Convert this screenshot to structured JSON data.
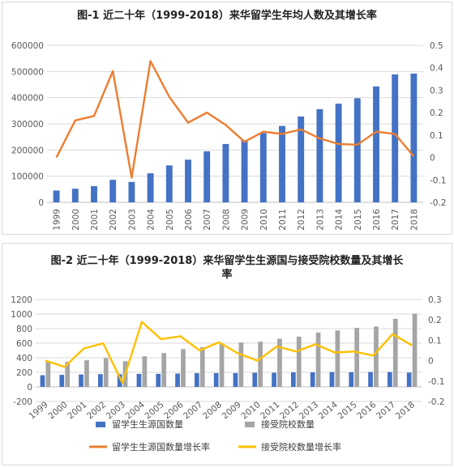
{
  "chart_data": [
    {
      "type": "bar+line",
      "title": "图-1 近二十年（1999-2018）来华留学生年均人数及其增长率",
      "categories": [
        "1999",
        "2000",
        "2001",
        "2002",
        "2003",
        "2004",
        "2005",
        "2006",
        "2007",
        "2008",
        "2009",
        "2010",
        "2011",
        "2012",
        "2013",
        "2014",
        "2015",
        "2016",
        "2017",
        "2018"
      ],
      "series": [
        {
          "kind": "bar",
          "axis": "left",
          "color": "#4472c4",
          "values": [
            45000,
            52000,
            62000,
            86000,
            78000,
            111000,
            141000,
            163000,
            195000,
            223000,
            238000,
            265000,
            292000,
            328000,
            356000,
            377000,
            398000,
            443000,
            489000,
            492000
          ]
        },
        {
          "kind": "line",
          "axis": "right",
          "color": "#ed7d31",
          "values": [
            0.0,
            0.165,
            0.185,
            0.385,
            -0.09,
            0.43,
            0.27,
            0.155,
            0.2,
            0.145,
            0.07,
            0.115,
            0.105,
            0.125,
            0.085,
            0.06,
            0.057,
            0.115,
            0.105,
            0.005
          ]
        }
      ],
      "ylim_left": [
        0,
        600000
      ],
      "yticks_left": [
        "0",
        "100000",
        "200000",
        "300000",
        "400000",
        "500000",
        "600000"
      ],
      "ylim_right": [
        -0.2,
        0.5
      ],
      "yticks_right": [
        "-0.2",
        "-0.1",
        "0",
        "0.1",
        "0.2",
        "0.3",
        "0.4",
        "0.5"
      ],
      "grid": true
    },
    {
      "type": "bar+line",
      "title": "图-2 近二十年（1999-2018）来华留学生生源国与接受院校数量及其增长率",
      "categories": [
        "1999",
        "2000",
        "2001",
        "2002",
        "2003",
        "2004",
        "2005",
        "2006",
        "2007",
        "2008",
        "2009",
        "2010",
        "2011",
        "2012",
        "2013",
        "2014",
        "2015",
        "2016",
        "2017",
        "2018"
      ],
      "series": [
        {
          "name": "留学生生源国数量",
          "kind": "bar",
          "axis": "left",
          "color": "#4472c4",
          "values": [
            160,
            165,
            170,
            175,
            175,
            178,
            179,
            183,
            188,
            189,
            190,
            194,
            194,
            200,
            200,
            203,
            202,
            205,
            204,
            196
          ]
        },
        {
          "name": "接受院校数量",
          "kind": "bar",
          "axis": "left",
          "color": "#a5a5a5",
          "values": [
            355,
            345,
            365,
            395,
            353,
            420,
            464,
            519,
            544,
            592,
            610,
            620,
            660,
            690,
            746,
            775,
            811,
            829,
            935,
            1004
          ]
        },
        {
          "name": "留学生生源国数量增长率",
          "kind": "line",
          "axis": "right",
          "color": "#ed7d31",
          "values": [
            null,
            null,
            null,
            null,
            null,
            null,
            null,
            null,
            null,
            null,
            null,
            null,
            null,
            null,
            null,
            null,
            null,
            null,
            null,
            null
          ]
        },
        {
          "name": "接受院校数量增长率",
          "kind": "line",
          "axis": "right",
          "color": "#ffc000",
          "values": [
            0.0,
            -0.03,
            0.06,
            0.085,
            -0.11,
            0.19,
            0.105,
            0.12,
            0.05,
            0.09,
            0.035,
            0.0,
            0.07,
            0.045,
            0.08,
            0.04,
            0.045,
            0.025,
            0.13,
            0.075
          ]
        }
      ],
      "ylim_left": [
        -200,
        1200
      ],
      "yticks_left": [
        "-200",
        "0",
        "200",
        "400",
        "600",
        "800",
        "1000",
        "1200"
      ],
      "ylim_right": [
        -0.2,
        0.3
      ],
      "yticks_right": [
        "-0.2",
        "-0.1",
        "0",
        "0.1",
        "0.2",
        "0.3"
      ],
      "legend_position": "bottom",
      "grid": true
    }
  ]
}
